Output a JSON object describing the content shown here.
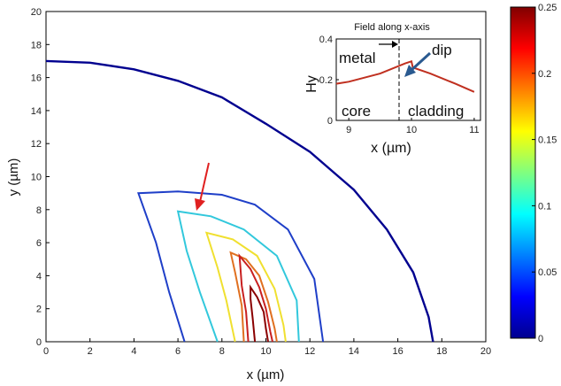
{
  "chart_data": [
    {
      "type": "contour",
      "xlabel": "x (µm)",
      "ylabel": "y (µm)",
      "xlim": [
        0,
        20
      ],
      "ylim": [
        0,
        20
      ],
      "xticks": [
        0,
        2,
        4,
        6,
        8,
        10,
        12,
        14,
        16,
        18,
        20
      ],
      "yticks": [
        0,
        2,
        4,
        6,
        8,
        10,
        12,
        14,
        16,
        18,
        20
      ],
      "contours": [
        {
          "level": 0.005,
          "color": "#00008f",
          "points": [
            [
              0,
              17
            ],
            [
              2,
              16.9
            ],
            [
              4,
              16.5
            ],
            [
              6,
              15.8
            ],
            [
              8,
              14.8
            ],
            [
              10,
              13.2
            ],
            [
              12,
              11.5
            ],
            [
              14,
              9.2
            ],
            [
              15.5,
              6.8
            ],
            [
              16.7,
              4.2
            ],
            [
              17.4,
              1.5
            ],
            [
              17.6,
              0
            ]
          ]
        },
        {
          "level": 0.02,
          "color": "#1f3fc8",
          "points": [
            [
              6.3,
              0
            ],
            [
              5.6,
              3
            ],
            [
              5.0,
              6
            ],
            [
              4.2,
              9.0
            ],
            [
              6,
              9.1
            ],
            [
              8,
              8.9
            ],
            [
              9.5,
              8.3
            ],
            [
              11,
              6.8
            ],
            [
              12.2,
              3.8
            ],
            [
              12.6,
              0
            ]
          ]
        },
        {
          "level": 0.08,
          "color": "#32c8dc",
          "points": [
            [
              7.8,
              0
            ],
            [
              7.0,
              3
            ],
            [
              6.4,
              5.5
            ],
            [
              6.0,
              7.9
            ],
            [
              7.5,
              7.6
            ],
            [
              9,
              6.8
            ],
            [
              10.5,
              5.2
            ],
            [
              11.4,
              2.5
            ],
            [
              11.5,
              0
            ]
          ]
        },
        {
          "level": 0.14,
          "color": "#f0e030",
          "points": [
            [
              8.6,
              0
            ],
            [
              8.2,
              2.5
            ],
            [
              7.8,
              4.5
            ],
            [
              7.3,
              6.6
            ],
            [
              8.5,
              6.2
            ],
            [
              9.6,
              5.2
            ],
            [
              10.4,
              3.2
            ],
            [
              10.8,
              1
            ],
            [
              10.9,
              0
            ]
          ]
        },
        {
          "level": 0.18,
          "color": "#e07020",
          "points": [
            [
              9.0,
              0
            ],
            [
              8.9,
              2.2
            ],
            [
              8.6,
              4.2
            ],
            [
              8.4,
              5.4
            ],
            [
              9.1,
              5.0
            ],
            [
              9.7,
              4.0
            ],
            [
              10.1,
              2.4
            ],
            [
              10.4,
              0.8
            ],
            [
              10.5,
              0
            ]
          ]
        },
        {
          "level": 0.21,
          "color": "#c82020",
          "points": [
            [
              9.2,
              0
            ],
            [
              9.1,
              1.8
            ],
            [
              8.9,
              3.4
            ],
            [
              8.8,
              5.2
            ],
            [
              9.3,
              4.4
            ],
            [
              9.7,
              3.3
            ],
            [
              10.0,
              2.0
            ],
            [
              10.2,
              0.6
            ],
            [
              10.3,
              0
            ]
          ]
        },
        {
          "level": 0.24,
          "color": "#8a0000",
          "points": [
            [
              9.5,
              0
            ],
            [
              9.4,
              1.4
            ],
            [
              9.3,
              2.6
            ],
            [
              9.3,
              3.3
            ],
            [
              9.6,
              2.7
            ],
            [
              9.9,
              1.8
            ],
            [
              10.0,
              0.8
            ],
            [
              10.1,
              0
            ]
          ]
        }
      ],
      "colorbar": {
        "min": 0,
        "max": 0.25,
        "ticks": [
          "0",
          "0.05",
          "0.1",
          "0.15",
          "0.2",
          "0.25"
        ]
      }
    },
    {
      "type": "line",
      "title": "Field along x-axis",
      "xlabel": "x (µm)",
      "ylabel": "Hy",
      "xlim": [
        8.8,
        11.1
      ],
      "ylim": [
        0,
        0.4
      ],
      "xticks": [
        "9",
        "10",
        "11"
      ],
      "yticks": [
        "0",
        "0.2",
        "0.4"
      ],
      "series": [
        {
          "x": [
            8.8,
            9.0,
            9.5,
            9.9,
            10.0,
            10.02,
            10.3,
            10.7,
            11.0
          ],
          "y": [
            0.18,
            0.19,
            0.23,
            0.28,
            0.29,
            0.26,
            0.23,
            0.18,
            0.14
          ]
        }
      ],
      "annotations": {
        "metal": "metal",
        "core": "core",
        "cladding": "cladding",
        "dip": "dip"
      }
    }
  ]
}
